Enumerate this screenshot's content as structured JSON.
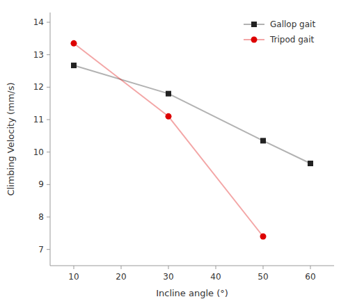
{
  "chart_data": {
    "type": "line",
    "xlabel": "Incline angle (°)",
    "ylabel": "Climbing Velocity (mm/s)",
    "series": [
      {
        "name": "Gallop gait",
        "color": "#222222",
        "marker": "square",
        "x": [
          10,
          30,
          50,
          60
        ],
        "values": [
          12.67,
          11.8,
          10.35,
          9.65
        ]
      },
      {
        "name": "Tripod gait",
        "color": "#dd0000",
        "marker": "circle",
        "x": [
          10,
          30,
          50
        ],
        "values": [
          13.35,
          11.1,
          7.4
        ]
      }
    ],
    "xlim": [
      5,
      65
    ],
    "ylim": [
      6.5,
      14.3
    ],
    "xticks": [
      10,
      20,
      30,
      40,
      50,
      60
    ],
    "yticks": [
      7,
      8,
      9,
      10,
      11,
      12,
      13,
      14
    ],
    "grid": false,
    "legend": "upper right"
  }
}
